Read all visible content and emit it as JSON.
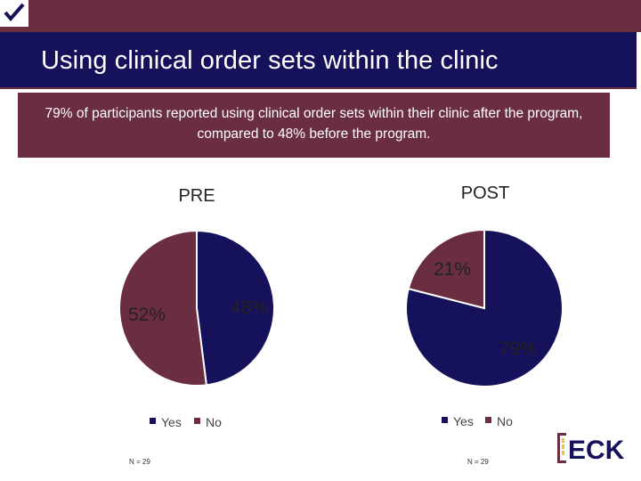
{
  "header": {
    "title": "Using clinical order sets within the clinic",
    "summary": "79% of participants reported using clinical order sets within their clinic after the program, compared to 48% before the program."
  },
  "icons": {
    "corner_icon": "check-mark-icon",
    "logo_icon": "check-logo-icon"
  },
  "colors": {
    "accent": "#6b2d40",
    "navy": "#15115a",
    "yes": "#15115a",
    "no": "#6b2d40"
  },
  "chart_data": [
    {
      "type": "pie",
      "title": "PRE",
      "categories": [
        "Yes",
        "No"
      ],
      "values": [
        48,
        52
      ],
      "labels": [
        "48%",
        "52%"
      ],
      "legend": [
        "Yes",
        "No"
      ],
      "legend_position": "bottom",
      "note": "N = 29"
    },
    {
      "type": "pie",
      "title": "POST",
      "categories": [
        "Yes",
        "No"
      ],
      "values": [
        79,
        21
      ],
      "labels": [
        "79%",
        "21%"
      ],
      "legend": [
        "Yes",
        "No"
      ],
      "legend_position": "bottom",
      "note": "N = 29"
    }
  ],
  "logo": {
    "text": "ECK"
  }
}
